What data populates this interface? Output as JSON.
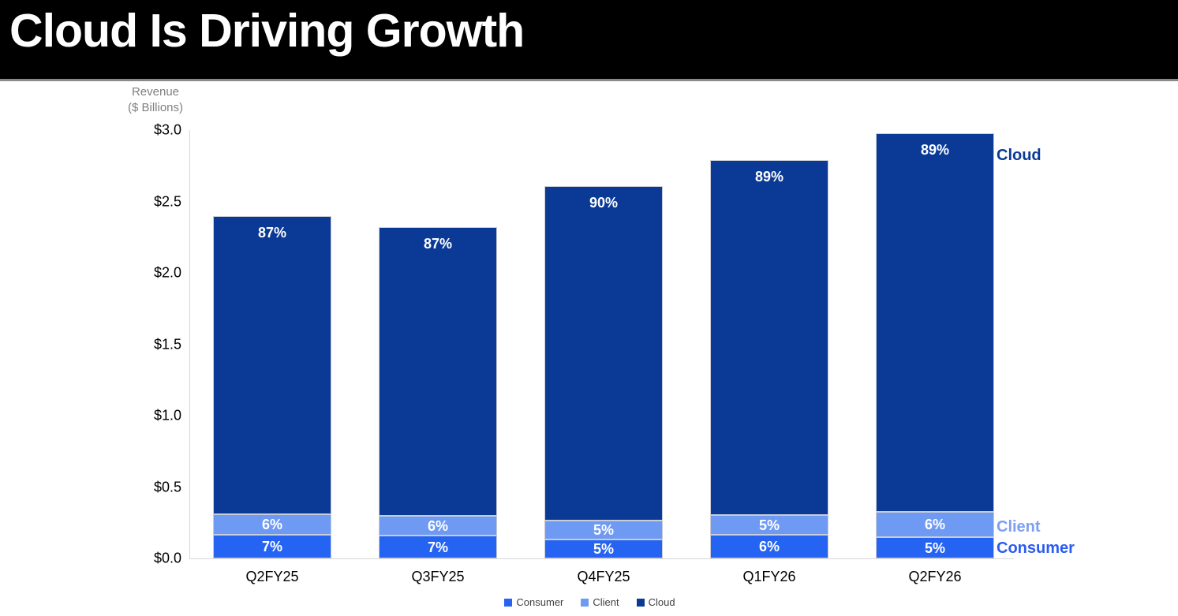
{
  "header": {
    "title": "Cloud Is Driving Growth"
  },
  "right_labels": {
    "cloud": "Cloud",
    "client": "Client",
    "consumer": "Consumer"
  },
  "chart_data": {
    "type": "bar",
    "stacked": true,
    "title": "Cloud Is Driving Growth",
    "ylabel_line1": "Revenue",
    "ylabel_line2": "($ Billions)",
    "categories": [
      "Q2FY25",
      "Q3FY25",
      "Q4FY25",
      "Q1FY26",
      "Q2FY26"
    ],
    "totals_billions": [
      2.4,
      2.32,
      2.61,
      2.79,
      2.98
    ],
    "series": [
      {
        "name": "Consumer",
        "color": "#2563f2",
        "pct": [
          7,
          7,
          5,
          6,
          5
        ],
        "labels": [
          "7%",
          "7%",
          "5%",
          "6%",
          "5%"
        ]
      },
      {
        "name": "Client",
        "color": "#6f9af3",
        "pct": [
          6,
          6,
          5,
          5,
          6
        ],
        "labels": [
          "6%",
          "6%",
          "5%",
          "5%",
          "6%"
        ]
      },
      {
        "name": "Cloud",
        "color": "#0a3a96",
        "pct": [
          87,
          87,
          90,
          89,
          89
        ],
        "labels": [
          "87%",
          "87%",
          "90%",
          "89%",
          "89%"
        ]
      }
    ],
    "y_ticks": [
      "$3.0",
      "$2.5",
      "$2.0",
      "$1.5",
      "$1.0",
      "$0.5",
      "$0.0"
    ],
    "ylim": [
      0,
      3.0
    ],
    "grid": false,
    "legend": [
      "Consumer",
      "Client",
      "Cloud"
    ],
    "legend_position": "bottom"
  }
}
